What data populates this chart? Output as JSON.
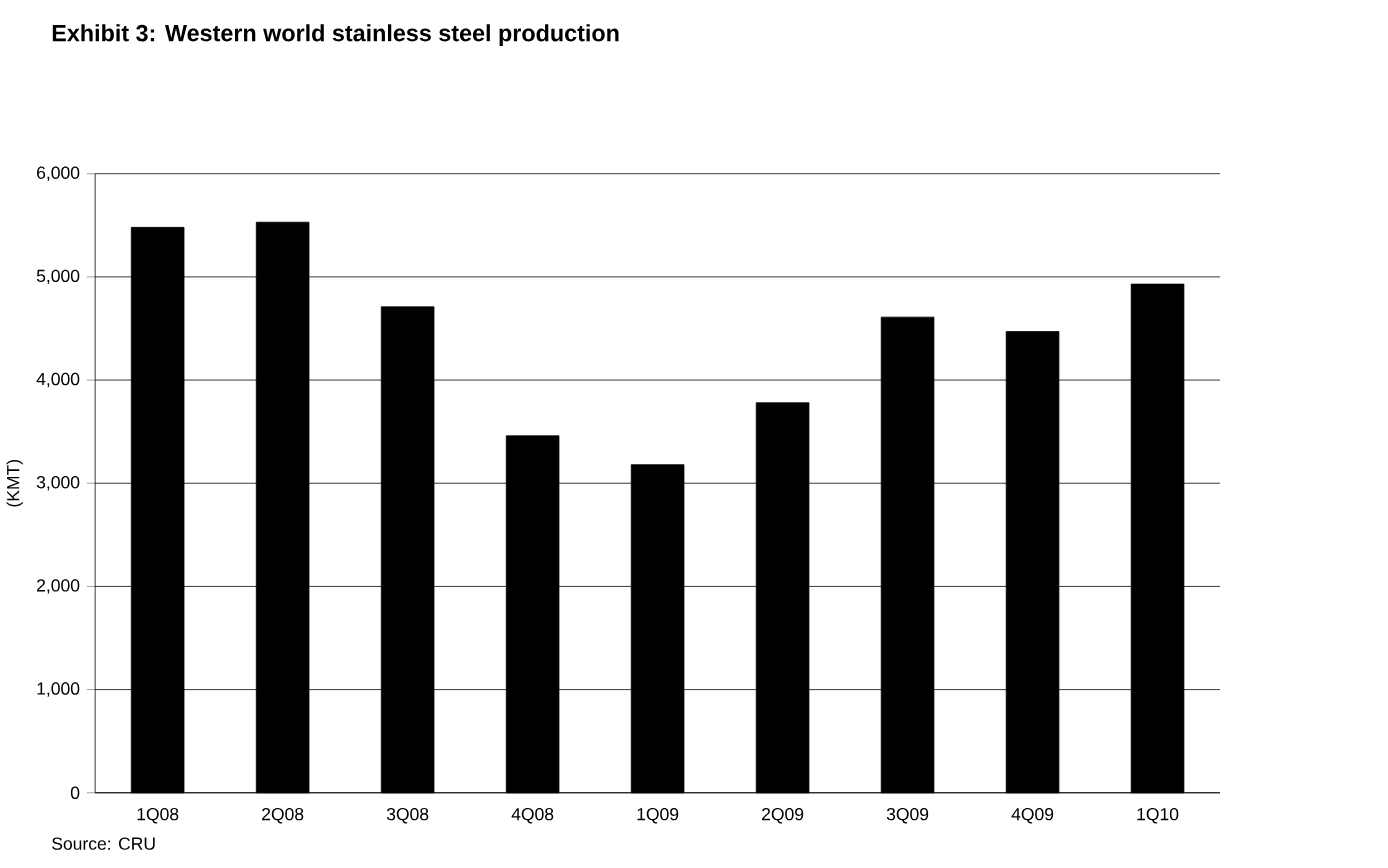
{
  "chart_data": {
    "type": "bar",
    "title": "Exhibit 3: Western world stainless steel production",
    "ylabel": "(KMT)",
    "categories": [
      "1Q08",
      "2Q08",
      "3Q08",
      "4Q08",
      "1Q09",
      "2Q09",
      "3Q09",
      "4Q09",
      "1Q10"
    ],
    "values": [
      5480,
      5530,
      4710,
      3460,
      3180,
      3780,
      4610,
      4470,
      4930
    ],
    "color": "#000000",
    "ylim": [
      0,
      6000
    ],
    "yticks": [
      {
        "value": 0,
        "label": "0"
      },
      {
        "value": 1000,
        "label": "1,000"
      },
      {
        "value": 2000,
        "label": "2,000"
      },
      {
        "value": 3000,
        "label": "3,000"
      },
      {
        "value": 4000,
        "label": "4,000"
      },
      {
        "value": 5000,
        "label": "5,000"
      },
      {
        "value": 6000,
        "label": "6,000"
      }
    ],
    "grid": "y",
    "legend": false,
    "annotations": [
      "Source: CRU"
    ]
  }
}
